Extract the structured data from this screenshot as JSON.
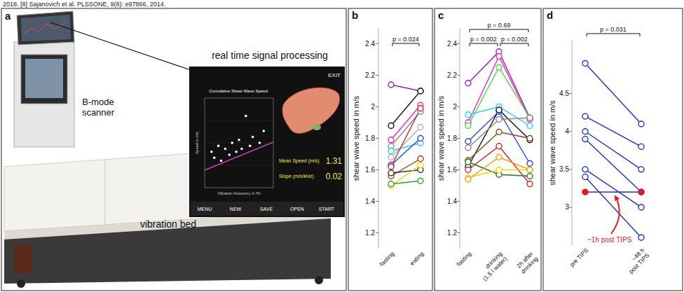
{
  "header": "2018. [8] Sajanovich et al. PLSSONE, 9(8): e97866, 2014.",
  "panel_a": {
    "label": "a",
    "labels": {
      "scanner": "B-mode scanner",
      "processing": "real time signal processing",
      "bed": "vibration bed"
    },
    "screen": {
      "title": "Cumulative Shear Wave Speed",
      "exit": "EXIT",
      "x_label": "Vibration frequency in Hz",
      "y_label": "Speed in m/s",
      "mean_label": "Mean Speed (m/s)",
      "mean_value": 1.31,
      "slope_label": "Slope (m/s/kHz)",
      "slope_value": 0.02,
      "buttons": [
        "MENU",
        "NEW",
        "SAVE",
        "OPEN",
        "START"
      ],
      "plot": {
        "xlim": [
          15,
          65
        ],
        "ylim": [
          0,
          3
        ],
        "x": [
          20,
          22,
          25,
          27,
          30,
          33,
          35,
          38,
          40,
          42,
          45,
          48,
          50,
          55,
          58
        ],
        "y": [
          1.2,
          1.0,
          1.4,
          0.9,
          1.3,
          1.1,
          1.5,
          1.2,
          1.6,
          1.3,
          2.4,
          1.4,
          1.7,
          1.5,
          1.9
        ]
      }
    }
  },
  "chart_data": [
    {
      "type": "line",
      "panel_label": "b",
      "y_label": "shear wave speed in m/s",
      "categories": [
        "fasting",
        "eating"
      ],
      "ylim": [
        1.1,
        2.5
      ],
      "yticks": [
        1.2,
        1.4,
        1.6,
        1.8,
        2,
        2.2,
        2.4
      ],
      "marker": "open-circle",
      "annotations": [
        {
          "text": "p = 0.024",
          "from": 0,
          "to": 1
        }
      ],
      "series": [
        {
          "color": "#8e24aa",
          "values": [
            2.14,
            2.1
          ]
        },
        {
          "color": "#111111",
          "values": [
            1.88,
            2.1
          ]
        },
        {
          "color": "#ff1fd0",
          "values": [
            1.79,
            2.01
          ]
        },
        {
          "color": "#888888",
          "values": [
            1.75,
            1.97
          ]
        },
        {
          "color": "#b0b0b0",
          "values": [
            1.68,
            1.87
          ]
        },
        {
          "color": "#22d3ee",
          "values": [
            1.72,
            1.77
          ]
        },
        {
          "color": "#1e40ff",
          "values": [
            1.63,
            1.8
          ]
        },
        {
          "color": "#e41a1c",
          "values": [
            1.62,
            1.99
          ]
        },
        {
          "color": "#8b4513",
          "values": [
            1.56,
            1.67
          ]
        },
        {
          "color": "#333333",
          "values": [
            1.58,
            1.6
          ]
        },
        {
          "color": "#f2d500",
          "values": [
            1.5,
            1.63
          ]
        },
        {
          "color": "#22aa22",
          "values": [
            1.51,
            1.53
          ]
        }
      ]
    },
    {
      "type": "line",
      "panel_label": "c",
      "y_label": "shear wave speed in m/s",
      "categories": [
        "fasting",
        "drinking (1.5 l water)",
        "2h after drinking"
      ],
      "ylim": [
        1.1,
        2.5
      ],
      "yticks": [
        1.2,
        1.4,
        1.6,
        1.8,
        2,
        2.2,
        2.4
      ],
      "marker": "open-circle",
      "annotations": [
        {
          "text": "p = 0.69",
          "from": 0,
          "to": 2
        },
        {
          "text": "p = 0.002",
          "from": 0,
          "to": 1
        },
        {
          "text": "p = 0.002",
          "from": 1,
          "to": 2
        }
      ],
      "series": [
        {
          "color": "#8e24aa",
          "values": [
            2.15,
            2.35,
            1.93
          ]
        },
        {
          "color": "#ff1fd0",
          "values": [
            1.9,
            2.32,
            1.92
          ]
        },
        {
          "color": "#39e639",
          "values": [
            1.88,
            2.25,
            1.93
          ]
        },
        {
          "color": "#22d3ee",
          "values": [
            1.95,
            2.0,
            1.88
          ]
        },
        {
          "color": "#1e40ff",
          "values": [
            1.78,
            1.97,
            1.64
          ]
        },
        {
          "color": "#111111",
          "values": [
            1.62,
            1.98,
            1.79
          ]
        },
        {
          "color": "#888888",
          "values": [
            1.74,
            1.92,
            1.93
          ]
        },
        {
          "color": "#8b4513",
          "values": [
            1.66,
            1.84,
            1.8
          ]
        },
        {
          "color": "#e41a1c",
          "values": [
            1.6,
            1.75,
            1.51
          ]
        },
        {
          "color": "#1b7a1b",
          "values": [
            1.65,
            1.57,
            1.56
          ]
        },
        {
          "color": "#f2d500",
          "values": [
            1.55,
            1.6,
            1.6
          ]
        },
        {
          "color": "#ff9900",
          "values": [
            1.54,
            1.68,
            1.6
          ]
        }
      ]
    },
    {
      "type": "line",
      "panel_label": "d",
      "y_label": "shear wave speed in m/s",
      "categories": [
        "pre TIPS",
        "~48 h post TIPS"
      ],
      "ylim": [
        2.5,
        5.2
      ],
      "yticks": [
        3,
        3.5,
        4,
        4.5
      ],
      "marker": "open-circle",
      "annotations": [
        {
          "text": "p = 0.031",
          "from": 0,
          "to": 1
        }
      ],
      "callouts": [
        {
          "text": "~1h post TIPS",
          "series": 6
        }
      ],
      "series": [
        {
          "color": "#1a2fd6",
          "values": [
            4.9,
            4.1
          ]
        },
        {
          "color": "#1a2fd6",
          "values": [
            4.2,
            3.8
          ]
        },
        {
          "color": "#1a2fd6",
          "values": [
            4.0,
            3.5
          ]
        },
        {
          "color": "#1a2fd6",
          "values": [
            3.9,
            3.2
          ]
        },
        {
          "color": "#1a2fd6",
          "values": [
            3.5,
            3.0
          ]
        },
        {
          "color": "#1a2fd6",
          "values": [
            3.4,
            2.6
          ]
        },
        {
          "color": "#1a2fd6",
          "marker": "filled-circle",
          "values": [
            3.2,
            3.2
          ]
        }
      ]
    }
  ]
}
